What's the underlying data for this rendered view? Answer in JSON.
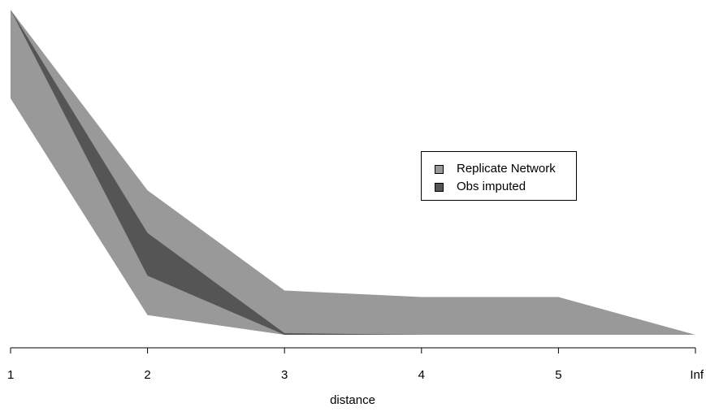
{
  "chart_data": {
    "type": "area",
    "xlabel": "distance",
    "ylabel": "",
    "categories": [
      "1",
      "2",
      "3",
      "4",
      "5",
      "Inf"
    ],
    "ylim": [
      0,
      1
    ],
    "series": [
      {
        "name": "Replicate Network",
        "color": "#999999",
        "lower": [
          0.72,
          0.06,
          0.0,
          0.0,
          0.0,
          0.0
        ],
        "upper": [
          0.99,
          0.44,
          0.135,
          0.115,
          0.115,
          0.0
        ]
      },
      {
        "name": "Obs imputed",
        "color": "#555555",
        "lower": [
          0.99,
          0.18,
          0.0,
          0.0,
          0.0,
          0.0
        ],
        "upper": [
          0.99,
          0.31,
          0.005,
          0.0,
          0.0,
          0.0
        ]
      }
    ],
    "legend_position": "right"
  }
}
